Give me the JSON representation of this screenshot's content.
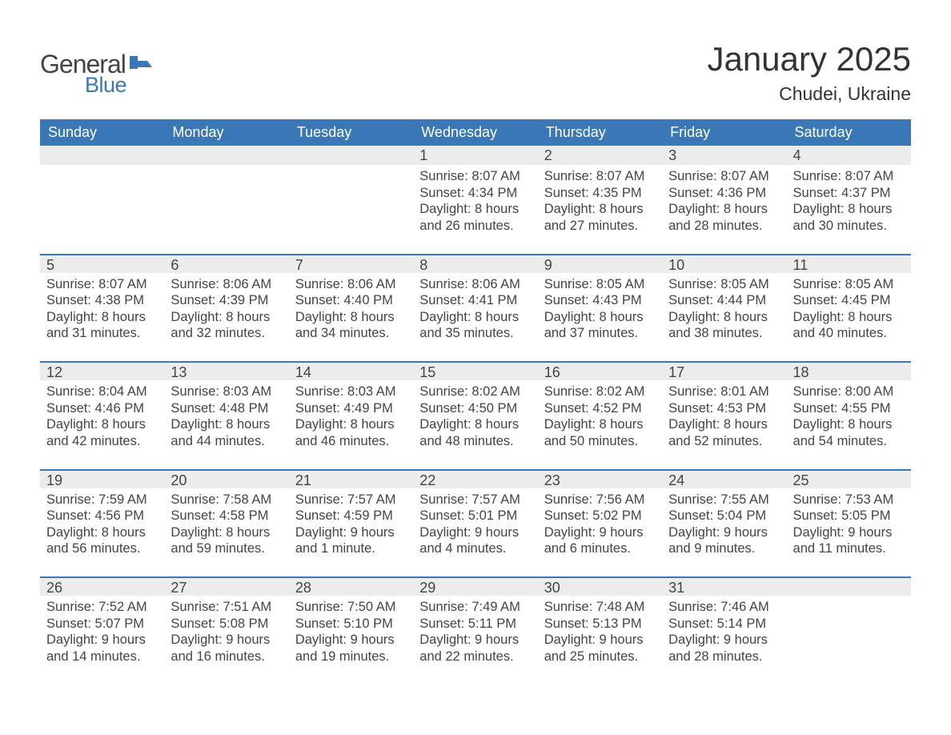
{
  "logo": {
    "text_general": "General",
    "text_blue": "Blue"
  },
  "header": {
    "month_title": "January 2025",
    "location": "Chudei, Ukraine"
  },
  "colors": {
    "header_bg": "#3a77b7",
    "header_text": "#ffffff",
    "daynum_bg": "#ececec",
    "daynum_border": "#3a77b7",
    "body_text": "#444444",
    "background": "#ffffff",
    "logo_blue": "#3a77b7"
  },
  "typography": {
    "month_title_fontsize": 42,
    "location_fontsize": 23,
    "day_header_fontsize": 18,
    "daynum_fontsize": 18,
    "content_fontsize": 16.5,
    "font_family": "Arial"
  },
  "day_headers": [
    "Sunday",
    "Monday",
    "Tuesday",
    "Wednesday",
    "Thursday",
    "Friday",
    "Saturday"
  ],
  "weeks": [
    [
      null,
      null,
      null,
      {
        "num": "1",
        "sunrise": "Sunrise: 8:07 AM",
        "sunset": "Sunset: 4:34 PM",
        "daylight1": "Daylight: 8 hours",
        "daylight2": "and 26 minutes."
      },
      {
        "num": "2",
        "sunrise": "Sunrise: 8:07 AM",
        "sunset": "Sunset: 4:35 PM",
        "daylight1": "Daylight: 8 hours",
        "daylight2": "and 27 minutes."
      },
      {
        "num": "3",
        "sunrise": "Sunrise: 8:07 AM",
        "sunset": "Sunset: 4:36 PM",
        "daylight1": "Daylight: 8 hours",
        "daylight2": "and 28 minutes."
      },
      {
        "num": "4",
        "sunrise": "Sunrise: 8:07 AM",
        "sunset": "Sunset: 4:37 PM",
        "daylight1": "Daylight: 8 hours",
        "daylight2": "and 30 minutes."
      }
    ],
    [
      {
        "num": "5",
        "sunrise": "Sunrise: 8:07 AM",
        "sunset": "Sunset: 4:38 PM",
        "daylight1": "Daylight: 8 hours",
        "daylight2": "and 31 minutes."
      },
      {
        "num": "6",
        "sunrise": "Sunrise: 8:06 AM",
        "sunset": "Sunset: 4:39 PM",
        "daylight1": "Daylight: 8 hours",
        "daylight2": "and 32 minutes."
      },
      {
        "num": "7",
        "sunrise": "Sunrise: 8:06 AM",
        "sunset": "Sunset: 4:40 PM",
        "daylight1": "Daylight: 8 hours",
        "daylight2": "and 34 minutes."
      },
      {
        "num": "8",
        "sunrise": "Sunrise: 8:06 AM",
        "sunset": "Sunset: 4:41 PM",
        "daylight1": "Daylight: 8 hours",
        "daylight2": "and 35 minutes."
      },
      {
        "num": "9",
        "sunrise": "Sunrise: 8:05 AM",
        "sunset": "Sunset: 4:43 PM",
        "daylight1": "Daylight: 8 hours",
        "daylight2": "and 37 minutes."
      },
      {
        "num": "10",
        "sunrise": "Sunrise: 8:05 AM",
        "sunset": "Sunset: 4:44 PM",
        "daylight1": "Daylight: 8 hours",
        "daylight2": "and 38 minutes."
      },
      {
        "num": "11",
        "sunrise": "Sunrise: 8:05 AM",
        "sunset": "Sunset: 4:45 PM",
        "daylight1": "Daylight: 8 hours",
        "daylight2": "and 40 minutes."
      }
    ],
    [
      {
        "num": "12",
        "sunrise": "Sunrise: 8:04 AM",
        "sunset": "Sunset: 4:46 PM",
        "daylight1": "Daylight: 8 hours",
        "daylight2": "and 42 minutes."
      },
      {
        "num": "13",
        "sunrise": "Sunrise: 8:03 AM",
        "sunset": "Sunset: 4:48 PM",
        "daylight1": "Daylight: 8 hours",
        "daylight2": "and 44 minutes."
      },
      {
        "num": "14",
        "sunrise": "Sunrise: 8:03 AM",
        "sunset": "Sunset: 4:49 PM",
        "daylight1": "Daylight: 8 hours",
        "daylight2": "and 46 minutes."
      },
      {
        "num": "15",
        "sunrise": "Sunrise: 8:02 AM",
        "sunset": "Sunset: 4:50 PM",
        "daylight1": "Daylight: 8 hours",
        "daylight2": "and 48 minutes."
      },
      {
        "num": "16",
        "sunrise": "Sunrise: 8:02 AM",
        "sunset": "Sunset: 4:52 PM",
        "daylight1": "Daylight: 8 hours",
        "daylight2": "and 50 minutes."
      },
      {
        "num": "17",
        "sunrise": "Sunrise: 8:01 AM",
        "sunset": "Sunset: 4:53 PM",
        "daylight1": "Daylight: 8 hours",
        "daylight2": "and 52 minutes."
      },
      {
        "num": "18",
        "sunrise": "Sunrise: 8:00 AM",
        "sunset": "Sunset: 4:55 PM",
        "daylight1": "Daylight: 8 hours",
        "daylight2": "and 54 minutes."
      }
    ],
    [
      {
        "num": "19",
        "sunrise": "Sunrise: 7:59 AM",
        "sunset": "Sunset: 4:56 PM",
        "daylight1": "Daylight: 8 hours",
        "daylight2": "and 56 minutes."
      },
      {
        "num": "20",
        "sunrise": "Sunrise: 7:58 AM",
        "sunset": "Sunset: 4:58 PM",
        "daylight1": "Daylight: 8 hours",
        "daylight2": "and 59 minutes."
      },
      {
        "num": "21",
        "sunrise": "Sunrise: 7:57 AM",
        "sunset": "Sunset: 4:59 PM",
        "daylight1": "Daylight: 9 hours",
        "daylight2": "and 1 minute."
      },
      {
        "num": "22",
        "sunrise": "Sunrise: 7:57 AM",
        "sunset": "Sunset: 5:01 PM",
        "daylight1": "Daylight: 9 hours",
        "daylight2": "and 4 minutes."
      },
      {
        "num": "23",
        "sunrise": "Sunrise: 7:56 AM",
        "sunset": "Sunset: 5:02 PM",
        "daylight1": "Daylight: 9 hours",
        "daylight2": "and 6 minutes."
      },
      {
        "num": "24",
        "sunrise": "Sunrise: 7:55 AM",
        "sunset": "Sunset: 5:04 PM",
        "daylight1": "Daylight: 9 hours",
        "daylight2": "and 9 minutes."
      },
      {
        "num": "25",
        "sunrise": "Sunrise: 7:53 AM",
        "sunset": "Sunset: 5:05 PM",
        "daylight1": "Daylight: 9 hours",
        "daylight2": "and 11 minutes."
      }
    ],
    [
      {
        "num": "26",
        "sunrise": "Sunrise: 7:52 AM",
        "sunset": "Sunset: 5:07 PM",
        "daylight1": "Daylight: 9 hours",
        "daylight2": "and 14 minutes."
      },
      {
        "num": "27",
        "sunrise": "Sunrise: 7:51 AM",
        "sunset": "Sunset: 5:08 PM",
        "daylight1": "Daylight: 9 hours",
        "daylight2": "and 16 minutes."
      },
      {
        "num": "28",
        "sunrise": "Sunrise: 7:50 AM",
        "sunset": "Sunset: 5:10 PM",
        "daylight1": "Daylight: 9 hours",
        "daylight2": "and 19 minutes."
      },
      {
        "num": "29",
        "sunrise": "Sunrise: 7:49 AM",
        "sunset": "Sunset: 5:11 PM",
        "daylight1": "Daylight: 9 hours",
        "daylight2": "and 22 minutes."
      },
      {
        "num": "30",
        "sunrise": "Sunrise: 7:48 AM",
        "sunset": "Sunset: 5:13 PM",
        "daylight1": "Daylight: 9 hours",
        "daylight2": "and 25 minutes."
      },
      {
        "num": "31",
        "sunrise": "Sunrise: 7:46 AM",
        "sunset": "Sunset: 5:14 PM",
        "daylight1": "Daylight: 9 hours",
        "daylight2": "and 28 minutes."
      },
      null
    ]
  ]
}
